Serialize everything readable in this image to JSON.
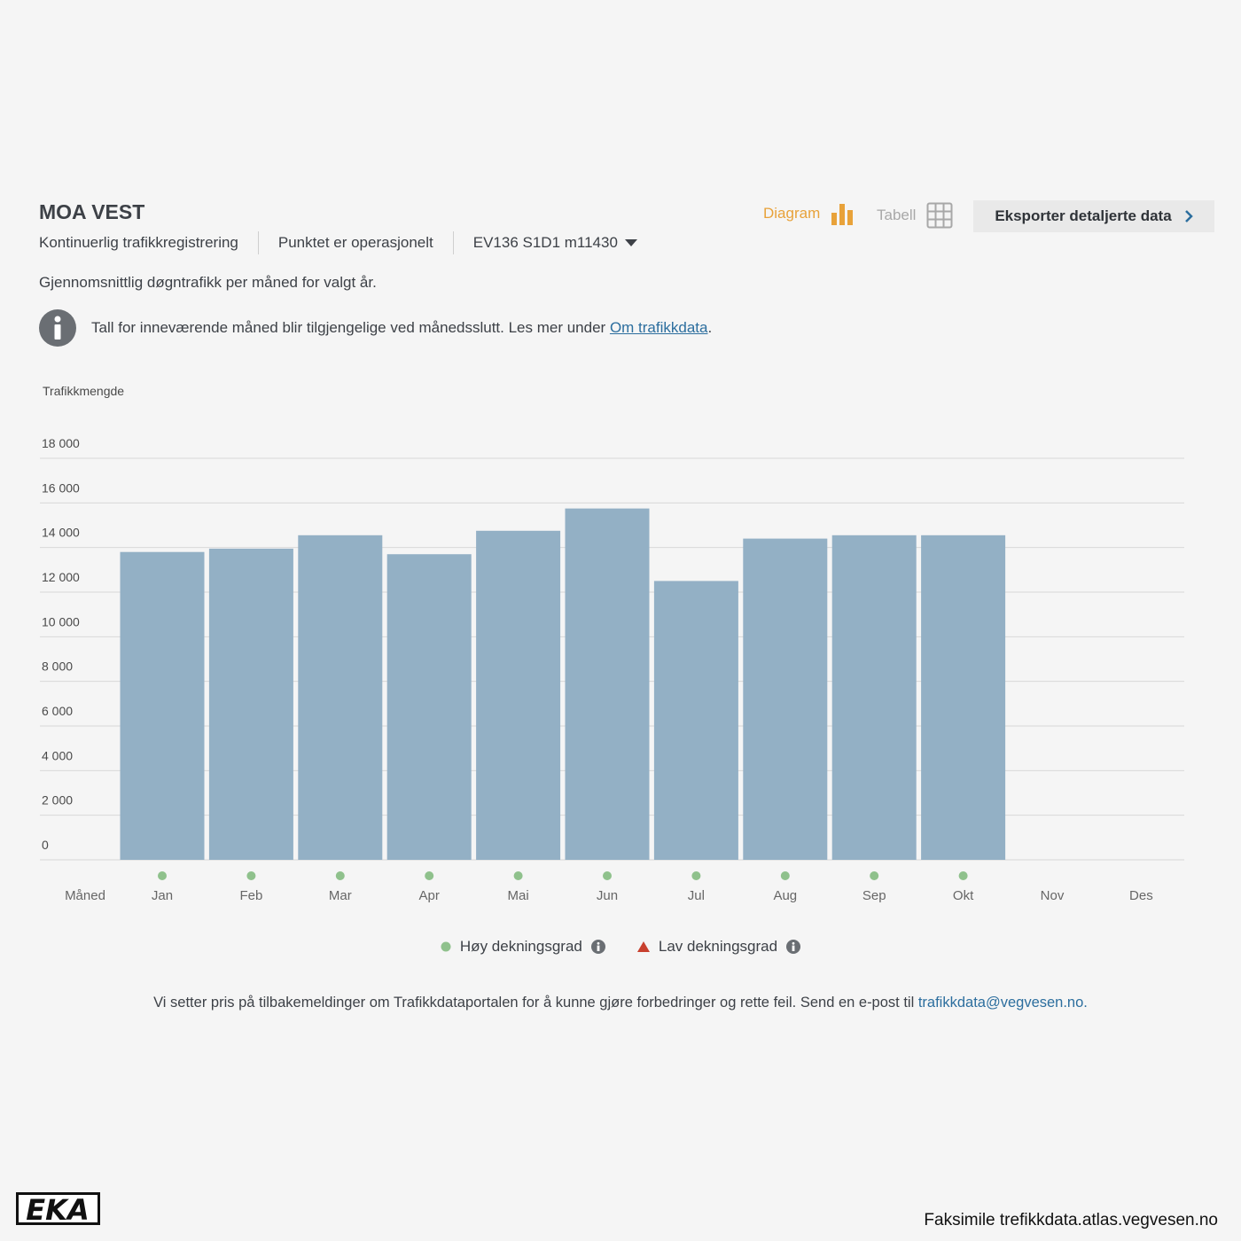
{
  "header": {
    "title": "MOA VEST",
    "registration_type": "Kontinuerlig trafikkregistrering",
    "status": "Punktet er operasjonelt",
    "station": "EV136 S1D1 m11430"
  },
  "toolbar": {
    "diagram_label": "Diagram",
    "table_label": "Tabell",
    "export_label": "Eksporter detaljerte data"
  },
  "subtitle": "Gjennomsnittlig døgntrafikk per måned for valgt år.",
  "notice": {
    "text": "Tall for inneværende måned blir tilgjengelige ved månedsslutt. Les mer under ",
    "link": "Om trafikkdata",
    "suffix": "."
  },
  "legend": {
    "high": "Høy dekningsgrad",
    "low": "Lav dekningsgrad"
  },
  "feedback": {
    "text": "Vi setter pris på tilbakemeldinger om Trafikkdataportalen for å kunne gjøre forbedringer og rette feil. Send en e-post til ",
    "email": "trafikkdata@vegvesen.no",
    "suffix": "."
  },
  "logo_text": "EKA",
  "credit": "Faksimile trefikkdata.atlas.vegvesen.no",
  "colors": {
    "bar": "#93b0c5",
    "accent_orange": "#e8a23a",
    "coverage_high": "#8fc18c",
    "coverage_low": "#c8402e",
    "link": "#2c6e9e"
  },
  "chart_data": {
    "type": "bar",
    "ylabel": "Trafikkmengde",
    "xlabel": "Måned",
    "ylim": [
      0,
      18000
    ],
    "yticks": [
      0,
      2000,
      4000,
      6000,
      8000,
      10000,
      12000,
      14000,
      16000,
      18000
    ],
    "ytick_labels": [
      "0",
      "2 000",
      "4 000",
      "6 000",
      "8 000",
      "10 000",
      "12 000",
      "14 000",
      "16 000",
      "18 000"
    ],
    "categories": [
      "Jan",
      "Feb",
      "Mar",
      "Apr",
      "Mai",
      "Jun",
      "Jul",
      "Aug",
      "Sep",
      "Okt",
      "Nov",
      "Des"
    ],
    "values": [
      13800,
      13950,
      14550,
      13700,
      14750,
      15750,
      12500,
      14400,
      14550,
      14550,
      null,
      null
    ],
    "coverage": [
      "high",
      "high",
      "high",
      "high",
      "high",
      "high",
      "high",
      "high",
      "high",
      "high",
      null,
      null
    ],
    "grid": true
  }
}
